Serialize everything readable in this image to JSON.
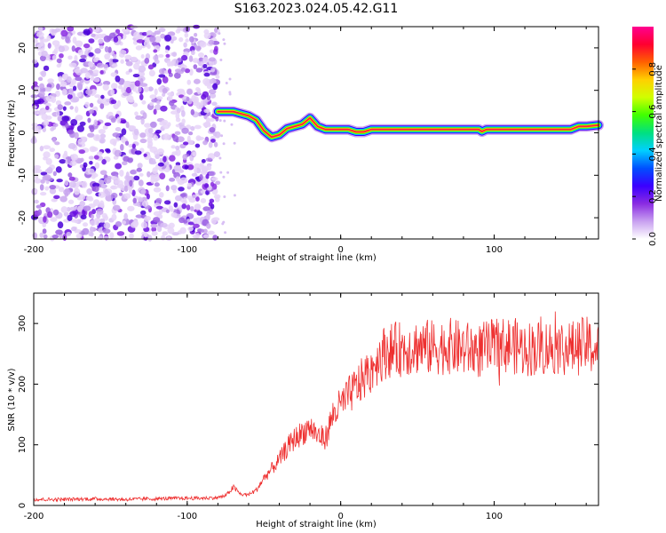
{
  "title": "S163.2023.024.05.42.G11",
  "chart_data": [
    {
      "type": "heatmap",
      "xlabel": "Height of straight line (km)",
      "ylabel": "Frequency (Hz)",
      "xlim": [
        -200,
        168
      ],
      "ylim": [
        -25,
        25
      ],
      "xticks": [
        -200,
        -100,
        0,
        100
      ],
      "yticks": [
        20,
        10,
        0,
        -10,
        -20
      ],
      "colorbar": {
        "label": "Normalized spectral amplitude",
        "range": [
          0,
          1
        ],
        "ticks": [
          0.0,
          0.2,
          0.4,
          0.6,
          0.8
        ],
        "colormap": [
          "#ffffff",
          "#c8a0f0",
          "#8a2be2",
          "#3a00ff",
          "#0050ff",
          "#00d0ff",
          "#00e080",
          "#40ff00",
          "#d0ff00",
          "#ffd000",
          "#ff6000",
          "#ff0030",
          "#ff0090"
        ]
      },
      "noise_region_x": [
        -200,
        -80
      ],
      "ridge": {
        "x": [
          -80,
          -75,
          -70,
          -65,
          -60,
          -55,
          -50,
          -45,
          -40,
          -35,
          -30,
          -25,
          -20,
          -15,
          -10,
          -5,
          0,
          5,
          10,
          15,
          20,
          30,
          40,
          50,
          60,
          70,
          80,
          90,
          92,
          95,
          100,
          110,
          120,
          130,
          140,
          150,
          155,
          160,
          168
        ],
        "y": [
          5,
          5,
          5,
          4.5,
          4,
          3,
          0.5,
          -1,
          -0.5,
          1,
          1.5,
          2,
          3.5,
          1.5,
          0.8,
          0.8,
          0.8,
          0.8,
          0.2,
          0.2,
          0.8,
          0.8,
          0.8,
          0.8,
          0.8,
          0.8,
          0.8,
          0.8,
          0.3,
          0.8,
          0.8,
          0.8,
          0.8,
          0.8,
          0.8,
          0.8,
          1.5,
          1.5,
          1.8
        ]
      }
    },
    {
      "type": "line",
      "xlabel": "Height of straight line (km)",
      "ylabel": "SNR (10 * v/v)",
      "xlim": [
        -200,
        168
      ],
      "ylim": [
        0,
        350
      ],
      "xticks": [
        -200,
        -100,
        0,
        100
      ],
      "yticks": [
        0,
        100,
        200,
        300
      ],
      "series": [
        {
          "color": "#ee3030",
          "x": [
            -200,
            -180,
            -160,
            -140,
            -120,
            -100,
            -90,
            -80,
            -75,
            -70,
            -65,
            -60,
            -55,
            -50,
            -45,
            -40,
            -35,
            -30,
            -25,
            -20,
            -15,
            -10,
            -5,
            0,
            5,
            10,
            15,
            20,
            25,
            30,
            40,
            50,
            60,
            70,
            80,
            90,
            100,
            110,
            120,
            130,
            140,
            150,
            160,
            168
          ],
          "y": [
            10,
            10,
            11,
            10,
            11,
            12,
            12,
            13,
            16,
            30,
            18,
            18,
            25,
            45,
            60,
            75,
            95,
            110,
            120,
            130,
            115,
            110,
            150,
            165,
            180,
            195,
            210,
            225,
            245,
            255,
            258,
            262,
            260,
            263,
            258,
            255,
            262,
            265,
            258,
            260,
            262,
            258,
            265,
            255
          ]
        }
      ]
    }
  ]
}
